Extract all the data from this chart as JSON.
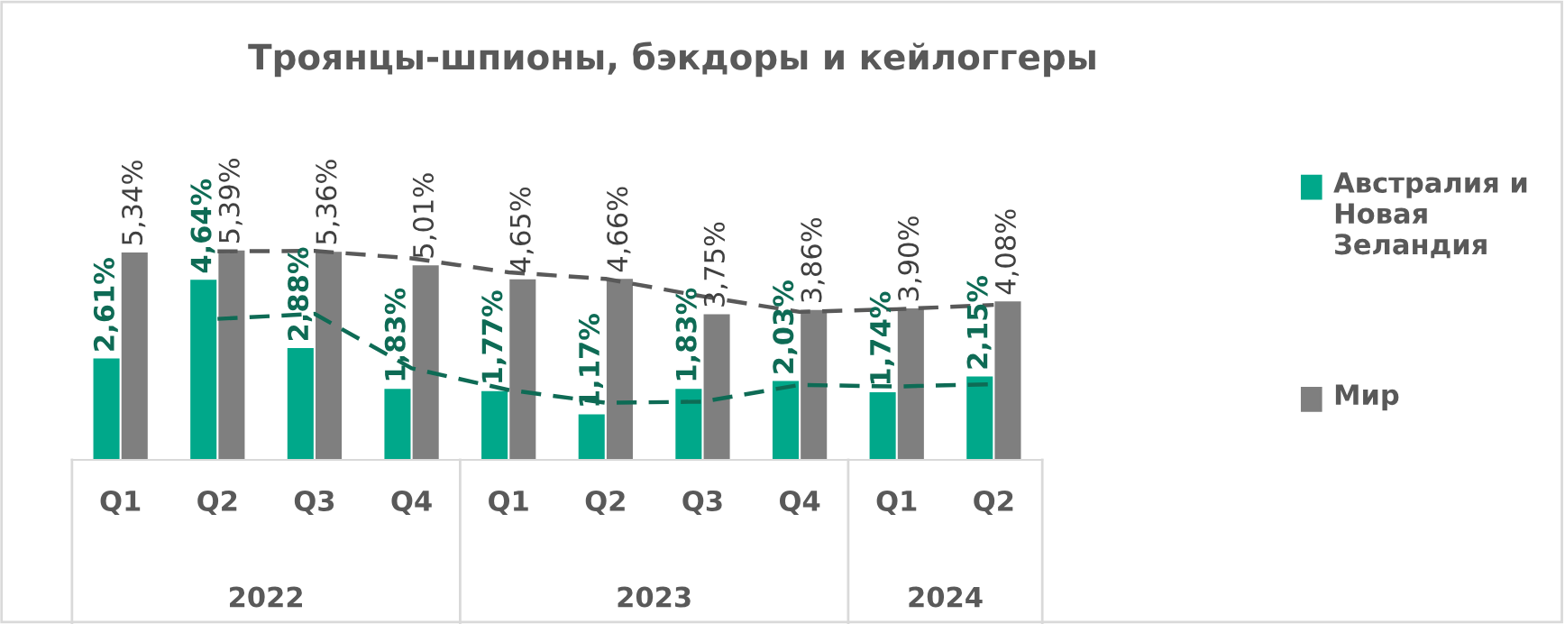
{
  "chart_data": {
    "type": "bar",
    "title": "Троянцы-шпионы, бэкдоры и кейлоггеры",
    "categories": [
      "Q1",
      "Q2",
      "Q3",
      "Q4",
      "Q1",
      "Q2",
      "Q3",
      "Q4",
      "Q1",
      "Q2"
    ],
    "series": [
      {
        "name": "Австралия и Новая Зеландия",
        "color": "#00a88a",
        "values": [
          2.61,
          4.64,
          2.88,
          1.83,
          1.77,
          1.17,
          1.83,
          2.03,
          1.74,
          2.15
        ],
        "value_labels": [
          "2,61%",
          "4,64%",
          "2,88%",
          "1,83%",
          "1,77%",
          "1,17%",
          "1,83%",
          "2,03%",
          "1,74%",
          "2,15%"
        ]
      },
      {
        "name": "Мир",
        "color": "#7f7f7f",
        "values": [
          5.34,
          5.39,
          5.36,
          5.01,
          4.65,
          4.66,
          3.75,
          3.86,
          3.9,
          4.08
        ],
        "value_labels": [
          "5,34%",
          "5,39%",
          "5,36%",
          "5,01%",
          "4,65%",
          "4,66%",
          "3,75%",
          "3,86%",
          "3,90%",
          "4,08%"
        ]
      },
      {
        "type": "line",
        "color": "#0e6b55",
        "line_style": "dashed",
        "values": [
          null,
          3.63,
          3.76,
          2.36,
          1.8,
          1.47,
          1.5,
          1.93,
          1.89,
          1.95
        ]
      },
      {
        "type": "line",
        "color": "#595959",
        "line_style": "dashed",
        "values": [
          null,
          5.37,
          5.38,
          5.19,
          4.83,
          4.66,
          4.21,
          3.81,
          3.88,
          3.99
        ]
      }
    ],
    "annotations": [
      "2022",
      "2023",
      "2024"
    ],
    "legend": "right",
    "tick_labels": "x",
    "grid": false
  }
}
